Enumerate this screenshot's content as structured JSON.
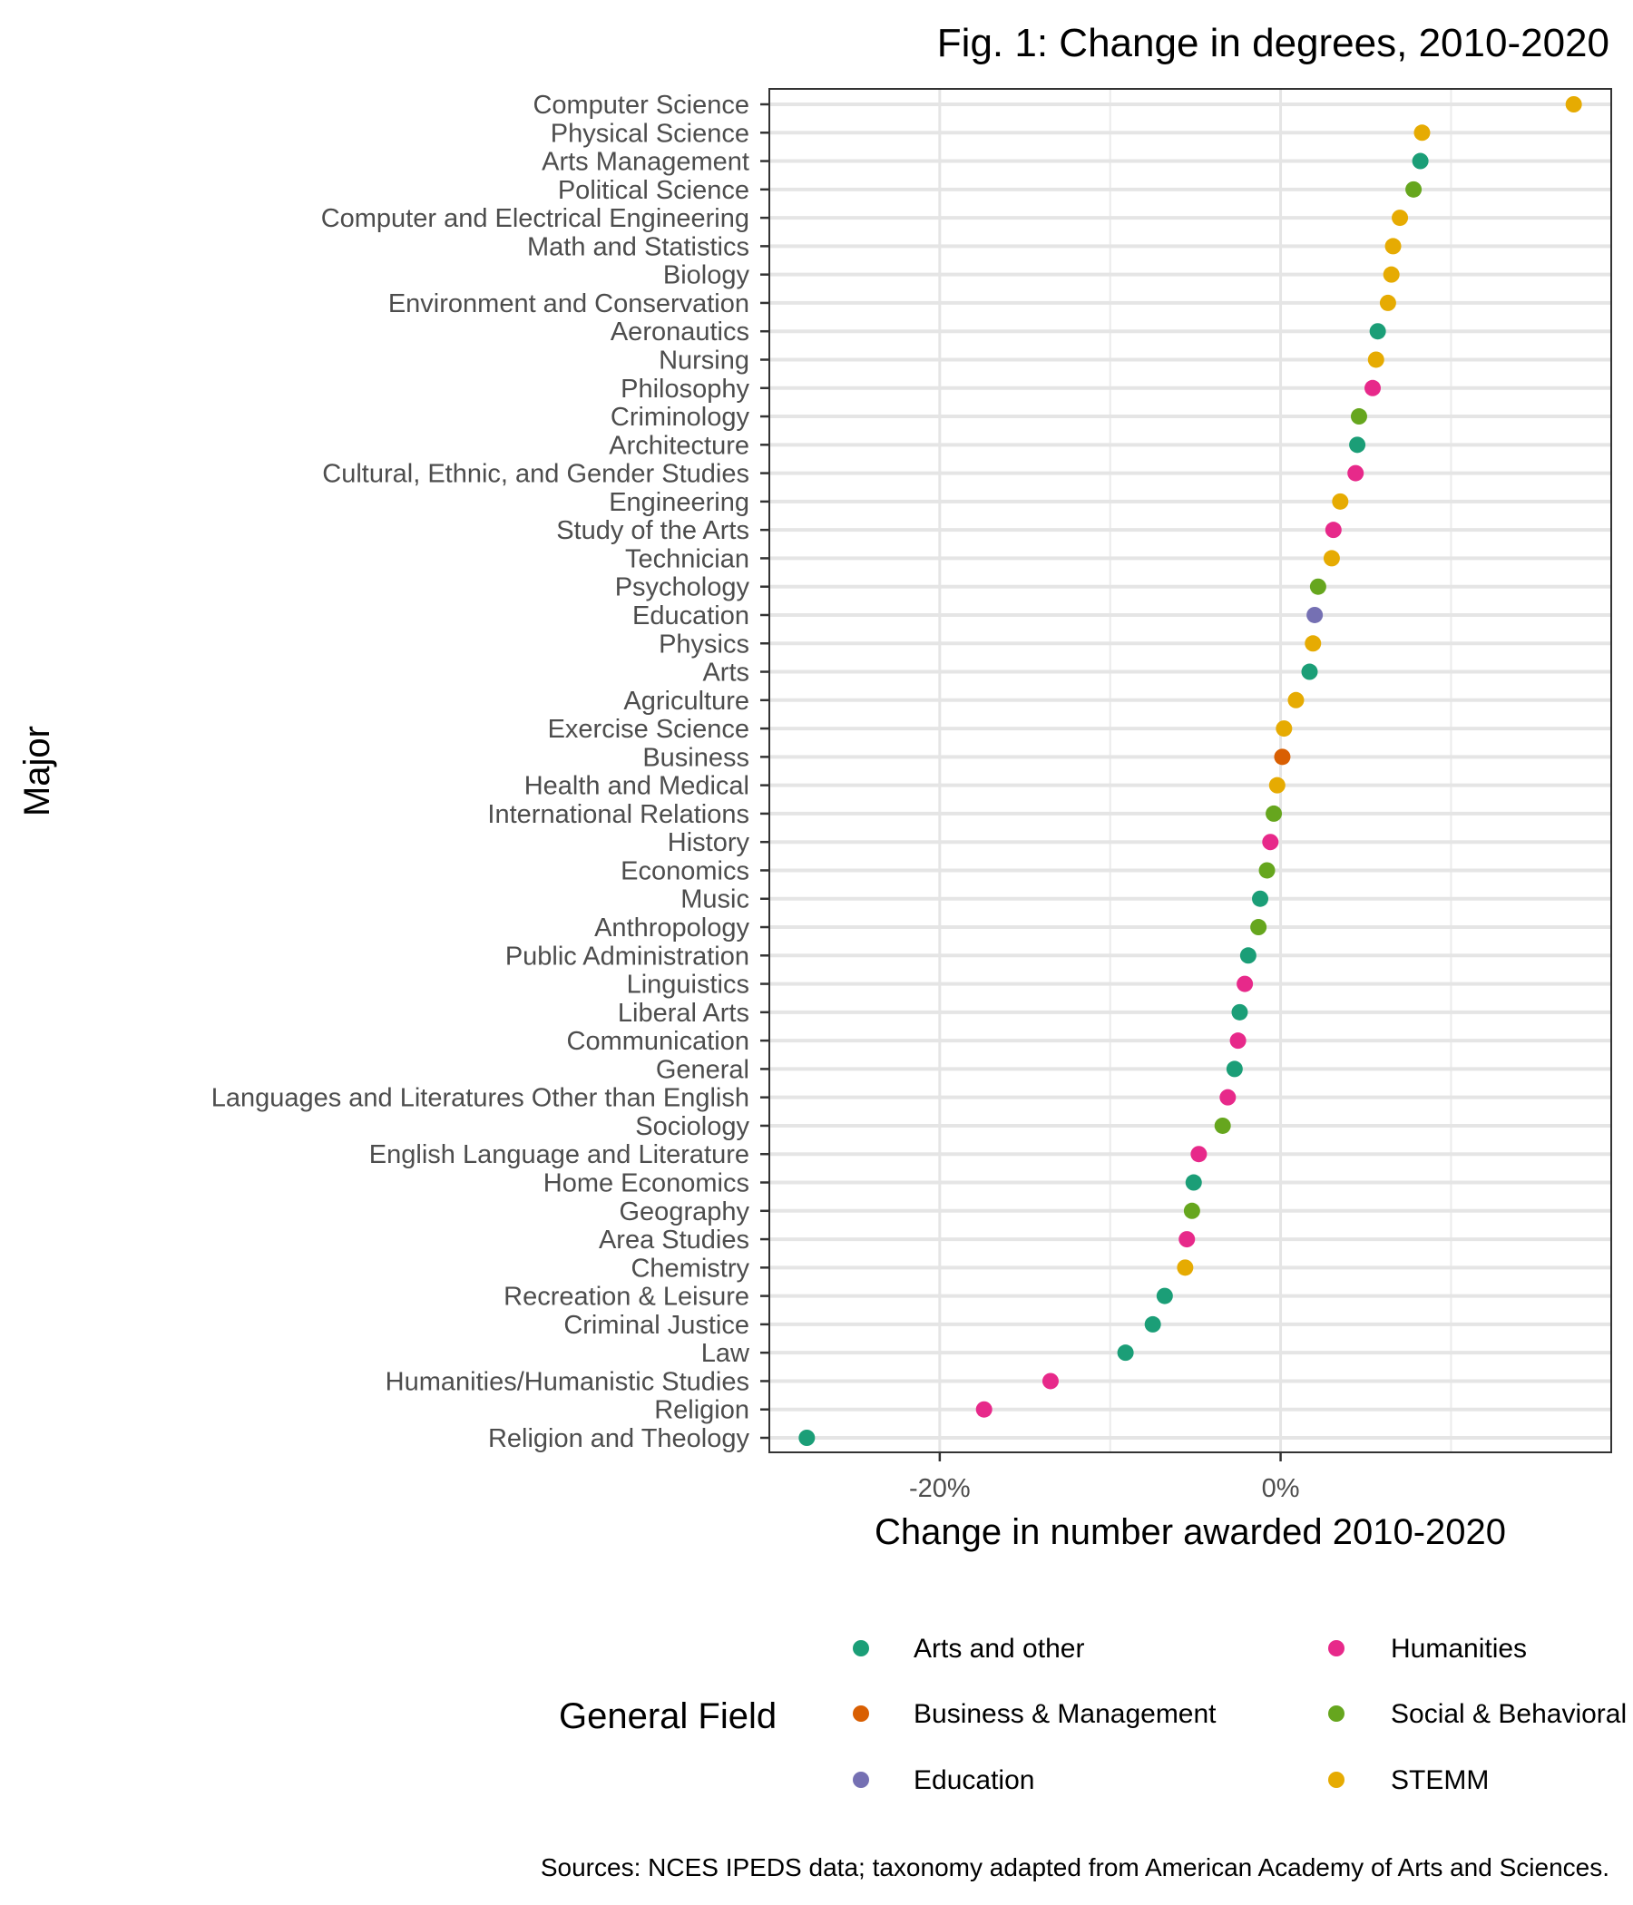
{
  "chart_data": {
    "type": "scatter",
    "title": "Fig. 1: Change in degrees, 2010-2020",
    "xlabel": "Change in number awarded 2010-2020",
    "ylabel": "Major",
    "xlim": [
      -30,
      19.4
    ],
    "x_ticks": [
      {
        "value": -20,
        "label": "-20%"
      },
      {
        "value": 0,
        "label": "0%"
      }
    ],
    "grid": true,
    "legend": {
      "title": "General Field",
      "placement": "bottom",
      "entries": [
        {
          "name": "Arts and other",
          "color": "#1B9E77"
        },
        {
          "name": "Business & Management",
          "color": "#D95F02"
        },
        {
          "name": "Education",
          "color": "#7570B3"
        },
        {
          "name": "Humanities",
          "color": "#E7298A"
        },
        {
          "name": "Social & Behavioral Sciences",
          "color": "#66A61E"
        },
        {
          "name": "STEMM",
          "color": "#E6AB02"
        }
      ]
    },
    "caption": "Sources: NCES IPEDS data; taxonomy adapted from American Academy of Arts and Sciences.",
    "points": [
      {
        "major": "Computer Science",
        "field": "STEMM",
        "value": 17.2
      },
      {
        "major": "Physical Science",
        "field": "STEMM",
        "value": 8.3
      },
      {
        "major": "Arts Management",
        "field": "Arts and other",
        "value": 8.2
      },
      {
        "major": "Political Science",
        "field": "Social & Behavioral Sciences",
        "value": 7.8
      },
      {
        "major": "Computer and Electrical Engineering",
        "field": "STEMM",
        "value": 7.0
      },
      {
        "major": "Math and Statistics",
        "field": "STEMM",
        "value": 6.6
      },
      {
        "major": "Biology",
        "field": "STEMM",
        "value": 6.5
      },
      {
        "major": "Environment and Conservation",
        "field": "STEMM",
        "value": 6.3
      },
      {
        "major": "Aeronautics",
        "field": "Arts and other",
        "value": 5.7
      },
      {
        "major": "Nursing",
        "field": "STEMM",
        "value": 5.6
      },
      {
        "major": "Philosophy",
        "field": "Humanities",
        "value": 5.4
      },
      {
        "major": "Criminology",
        "field": "Social & Behavioral Sciences",
        "value": 4.6
      },
      {
        "major": "Architecture",
        "field": "Arts and other",
        "value": 4.5
      },
      {
        "major": "Cultural, Ethnic, and Gender Studies",
        "field": "Humanities",
        "value": 4.4
      },
      {
        "major": "Engineering",
        "field": "STEMM",
        "value": 3.5
      },
      {
        "major": "Study of the Arts",
        "field": "Humanities",
        "value": 3.1
      },
      {
        "major": "Technician",
        "field": "STEMM",
        "value": 3.0
      },
      {
        "major": "Psychology",
        "field": "Social & Behavioral Sciences",
        "value": 2.2
      },
      {
        "major": "Education",
        "field": "Education",
        "value": 2.0
      },
      {
        "major": "Physics",
        "field": "STEMM",
        "value": 1.9
      },
      {
        "major": "Arts",
        "field": "Arts and other",
        "value": 1.7
      },
      {
        "major": "Agriculture",
        "field": "STEMM",
        "value": 0.9
      },
      {
        "major": "Exercise Science",
        "field": "STEMM",
        "value": 0.2
      },
      {
        "major": "Business",
        "field": "Business & Management",
        "value": 0.1
      },
      {
        "major": "Health and Medical",
        "field": "STEMM",
        "value": -0.2
      },
      {
        "major": "International Relations",
        "field": "Social & Behavioral Sciences",
        "value": -0.4
      },
      {
        "major": "History",
        "field": "Humanities",
        "value": -0.6
      },
      {
        "major": "Economics",
        "field": "Social & Behavioral Sciences",
        "value": -0.8
      },
      {
        "major": "Music",
        "field": "Arts and other",
        "value": -1.2
      },
      {
        "major": "Anthropology",
        "field": "Social & Behavioral Sciences",
        "value": -1.3
      },
      {
        "major": "Public Administration",
        "field": "Arts and other",
        "value": -1.9
      },
      {
        "major": "Linguistics",
        "field": "Humanities",
        "value": -2.1
      },
      {
        "major": "Liberal Arts",
        "field": "Arts and other",
        "value": -2.4
      },
      {
        "major": "Communication",
        "field": "Humanities",
        "value": -2.5
      },
      {
        "major": "General",
        "field": "Arts and other",
        "value": -2.7
      },
      {
        "major": "Languages and Literatures Other than English",
        "field": "Humanities",
        "value": -3.1
      },
      {
        "major": "Sociology",
        "field": "Social & Behavioral Sciences",
        "value": -3.4
      },
      {
        "major": "English Language and Literature",
        "field": "Humanities",
        "value": -4.8
      },
      {
        "major": "Home Economics",
        "field": "Arts and other",
        "value": -5.1
      },
      {
        "major": "Geography",
        "field": "Social & Behavioral Sciences",
        "value": -5.2
      },
      {
        "major": "Area Studies",
        "field": "Humanities",
        "value": -5.5
      },
      {
        "major": "Chemistry",
        "field": "STEMM",
        "value": -5.6
      },
      {
        "major": "Recreation & Leisure",
        "field": "Arts and other",
        "value": -6.8
      },
      {
        "major": "Criminal Justice",
        "field": "Arts and other",
        "value": -7.5
      },
      {
        "major": "Law",
        "field": "Arts and other",
        "value": -9.1
      },
      {
        "major": "Humanities/Humanistic Studies",
        "field": "Humanities",
        "value": -13.5
      },
      {
        "major": "Religion",
        "field": "Humanities",
        "value": -17.4
      },
      {
        "major": "Religion and Theology",
        "field": "Arts and other",
        "value": -27.8
      }
    ]
  }
}
